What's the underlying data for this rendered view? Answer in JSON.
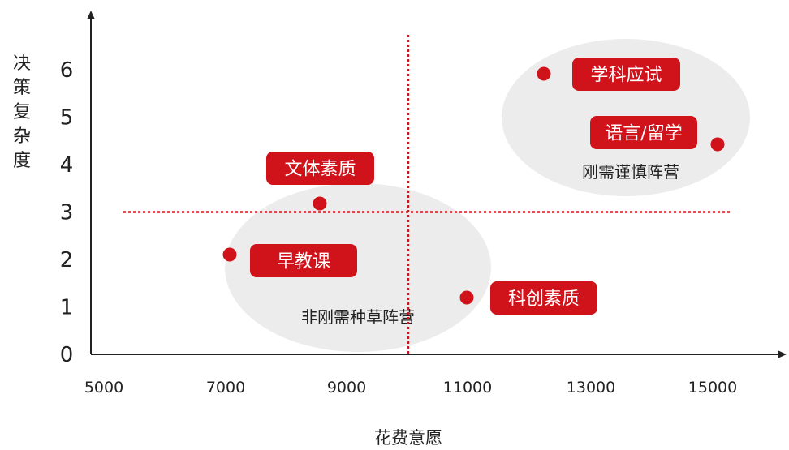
{
  "chart_data": {
    "type": "scatter",
    "xlabel": "花费意愿",
    "ylabel": "决策复杂度",
    "xlim": [
      5000,
      16000
    ],
    "ylim": [
      0,
      6.6
    ],
    "x_ticks": [
      "5000",
      "7000",
      "9000",
      "11000",
      "13000",
      "15000"
    ],
    "y_ticks": [
      "0",
      "1",
      "2",
      "3",
      "4",
      "5",
      "6"
    ],
    "threshold_x": 10000,
    "threshold_y": 3,
    "points": [
      {
        "label": "学科应试",
        "x": 12300,
        "y": 5.8
      },
      {
        "label": "语言/留学",
        "x": 15100,
        "y": 4.3
      },
      {
        "label": "文体素质",
        "x": 8600,
        "y": 3.0
      },
      {
        "label": "早教课",
        "x": 7000,
        "y": 2.0
      },
      {
        "label": "科创素质",
        "x": 11000,
        "y": 1.1
      }
    ],
    "groups": [
      {
        "label": "刚需谨慎阵营"
      },
      {
        "label": "非刚需种草阵营"
      }
    ],
    "colors": {
      "accent": "#d0121b",
      "group_fill": "#ececec",
      "axis": "#222222"
    }
  }
}
